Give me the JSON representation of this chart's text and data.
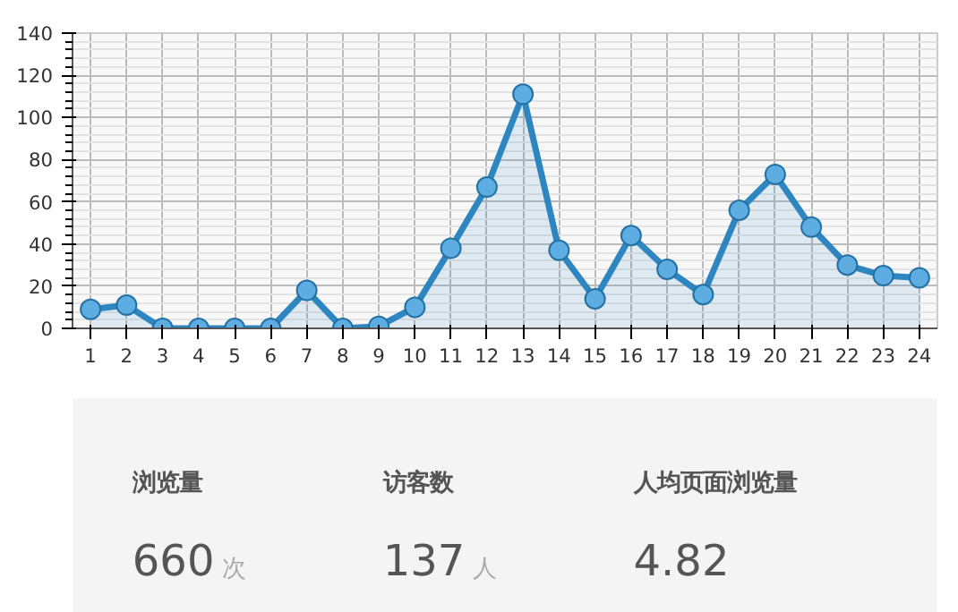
{
  "chart_data": [
    {
      "type": "area",
      "x": [
        1,
        2,
        3,
        4,
        5,
        6,
        7,
        8,
        9,
        10,
        11,
        12,
        13,
        14,
        15,
        16,
        17,
        18,
        19,
        20,
        21,
        22,
        23,
        24
      ],
      "series": [
        {
          "color": "#2e86c1",
          "values": [
            9,
            11,
            0,
            0,
            0,
            0,
            18,
            0,
            1,
            10,
            38,
            67,
            111,
            37,
            14,
            44,
            28,
            16,
            56,
            73,
            48,
            30,
            25,
            24
          ]
        }
      ],
      "xlim": [
        0.5,
        24.5
      ],
      "xticks": [
        1,
        2,
        3,
        4,
        5,
        6,
        7,
        8,
        9,
        10,
        11,
        12,
        13,
        14,
        15,
        16,
        17,
        18,
        19,
        20,
        21,
        22,
        23,
        24
      ],
      "ylim": [
        0,
        140
      ],
      "yticks": [
        0,
        20,
        40,
        60,
        80,
        100,
        120,
        140
      ],
      "grid": true,
      "marker": "circle",
      "line_style": "solid"
    },
    {
      "type": "other",
      "categories": [
        "浏览量",
        "访客数",
        "人均页面浏览量"
      ],
      "value_labels": [
        "660",
        "137",
        "4.82"
      ],
      "annotations": [
        "次",
        "人"
      ]
    }
  ]
}
